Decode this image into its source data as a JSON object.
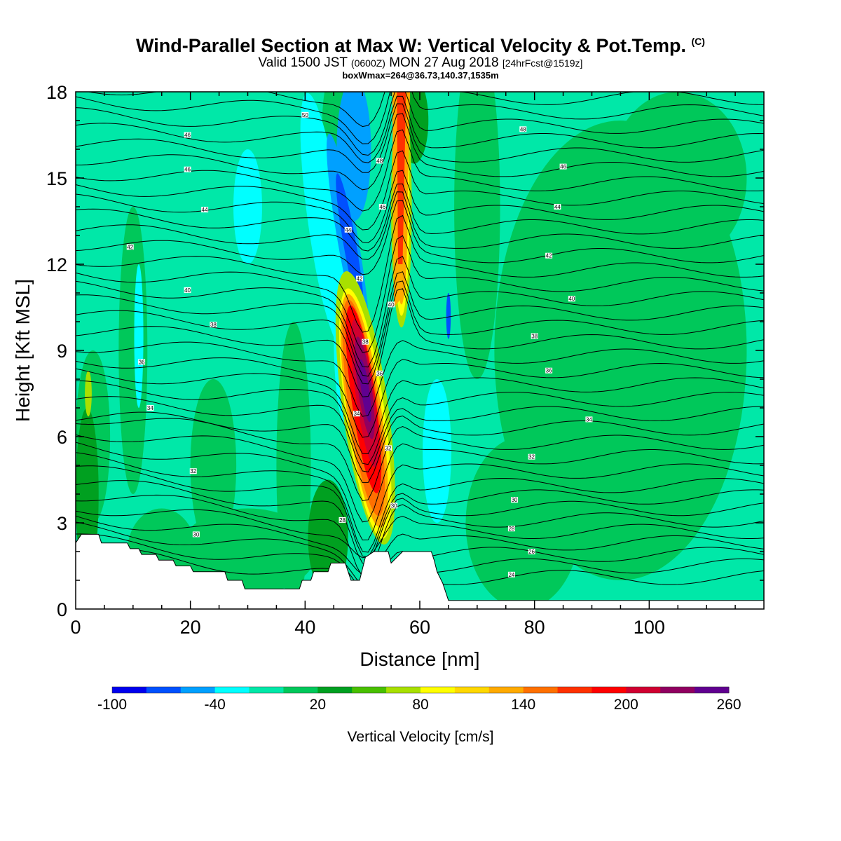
{
  "title": {
    "line1": "Wind-Parallel Section at Max W: Vertical Velocity & Pot.Temp.",
    "copyright": "(C)",
    "line2_a": "Valid 1500 JST",
    "line2_b": "(0600Z)",
    "line2_c": "MON 27 Aug 2018",
    "line2_d": "[24hrFcst@1519z]",
    "line3": "boxWmax=264@36.73,140.37,1535m"
  },
  "chart_data": {
    "type": "heatmap",
    "xlabel": "Distance [nm]",
    "ylabel": "Height [Kft MSL]",
    "xlim": [
      0,
      120
    ],
    "ylim": [
      0,
      18
    ],
    "x_ticks": [
      0,
      20,
      40,
      60,
      80,
      100
    ],
    "y_ticks": [
      0,
      3,
      6,
      9,
      12,
      15,
      18
    ],
    "colorbar": {
      "label": "Vertical Velocity [cm/s]",
      "tick_labels": [
        -100,
        -40,
        20,
        80,
        140,
        200,
        260
      ],
      "colors": [
        "#0000ee",
        "#0050ff",
        "#00a0ff",
        "#00ffff",
        "#00e8a8",
        "#00c85a",
        "#00a020",
        "#48c000",
        "#a8e000",
        "#ffff00",
        "#ffd800",
        "#ffaa00",
        "#ff7000",
        "#ff3000",
        "#ff0000",
        "#d00030",
        "#900060",
        "#600090"
      ]
    },
    "max_w_cm_s": 264,
    "updraft_core": {
      "x_nm": 50,
      "height_kft": 7
    },
    "theta_contour_labels": [
      {
        "x": 40,
        "y": 17.2,
        "v": 50
      },
      {
        "x": 19.5,
        "y": 16.5,
        "v": 46
      },
      {
        "x": 19.5,
        "y": 15.3,
        "v": 46
      },
      {
        "x": 22.5,
        "y": 13.9,
        "v": 44
      },
      {
        "x": 9.5,
        "y": 12.6,
        "v": 42
      },
      {
        "x": 19.5,
        "y": 11.1,
        "v": 40
      },
      {
        "x": 24,
        "y": 9.9,
        "v": 38
      },
      {
        "x": 11.5,
        "y": 8.6,
        "v": 36
      },
      {
        "x": 13,
        "y": 7.0,
        "v": 34
      },
      {
        "x": 20.5,
        "y": 4.8,
        "v": 32
      },
      {
        "x": 21,
        "y": 2.6,
        "v": 30
      },
      {
        "x": 53,
        "y": 15.6,
        "v": 48
      },
      {
        "x": 53.5,
        "y": 14.0,
        "v": 46
      },
      {
        "x": 47.5,
        "y": 13.2,
        "v": 44
      },
      {
        "x": 49.5,
        "y": 11.5,
        "v": 42
      },
      {
        "x": 55,
        "y": 10.6,
        "v": 40
      },
      {
        "x": 50.5,
        "y": 9.3,
        "v": 38
      },
      {
        "x": 53,
        "y": 8.2,
        "v": 36
      },
      {
        "x": 49,
        "y": 6.8,
        "v": 34
      },
      {
        "x": 54.5,
        "y": 5.6,
        "v": 32
      },
      {
        "x": 55.5,
        "y": 3.6,
        "v": 30
      },
      {
        "x": 46.5,
        "y": 3.1,
        "v": 28
      },
      {
        "x": 78,
        "y": 16.7,
        "v": 48
      },
      {
        "x": 85,
        "y": 15.4,
        "v": 46
      },
      {
        "x": 84,
        "y": 14.0,
        "v": 44
      },
      {
        "x": 82.5,
        "y": 12.3,
        "v": 42
      },
      {
        "x": 86.5,
        "y": 10.8,
        "v": 40
      },
      {
        "x": 80,
        "y": 9.5,
        "v": 38
      },
      {
        "x": 82.5,
        "y": 8.3,
        "v": 36
      },
      {
        "x": 89.5,
        "y": 6.6,
        "v": 34
      },
      {
        "x": 79.5,
        "y": 5.3,
        "v": 32
      },
      {
        "x": 76.5,
        "y": 3.8,
        "v": 30
      },
      {
        "x": 76,
        "y": 2.8,
        "v": 28
      },
      {
        "x": 79.5,
        "y": 2.0,
        "v": 26
      },
      {
        "x": 76,
        "y": 1.2,
        "v": 24
      }
    ]
  }
}
